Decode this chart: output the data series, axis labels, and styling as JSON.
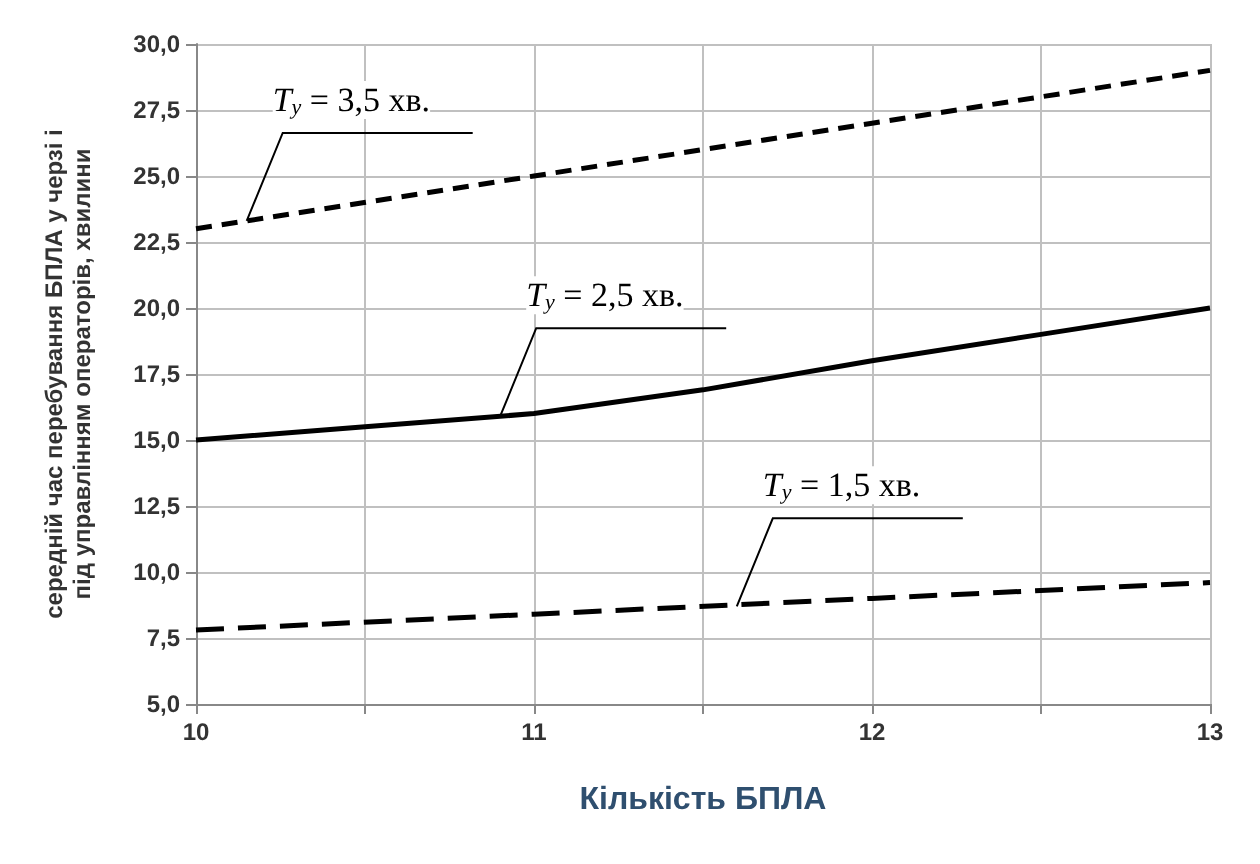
{
  "chart_data": {
    "type": "line",
    "xlabel": "Кількість БПЛА",
    "ylabel": "середній час перебування БПЛА у черзі і\nпід управлінням операторів, хвилини",
    "xlim": [
      10,
      13
    ],
    "xticks": [
      10,
      {
        "value": 10.5,
        "label": null
      },
      11,
      {
        "value": 11.5,
        "label": null
      },
      12,
      {
        "value": 12.5,
        "label": null
      },
      13
    ],
    "ylim": [
      5,
      30
    ],
    "yticks": [
      {
        "value": 5,
        "label": "5,0"
      },
      {
        "value": 7.5,
        "label": "7,5"
      },
      {
        "value": 10,
        "label": "10,0"
      },
      {
        "value": 12.5,
        "label": "12,5"
      },
      {
        "value": 15,
        "label": "15,0"
      },
      {
        "value": 17.5,
        "label": "17,5"
      },
      {
        "value": 20,
        "label": "20,0"
      },
      {
        "value": 22.5,
        "label": "22,5"
      },
      {
        "value": 25,
        "label": "25,0"
      },
      {
        "value": 27.5,
        "label": "27,5"
      },
      {
        "value": 30,
        "label": "30,0"
      }
    ],
    "grid": true,
    "marker": "none",
    "series": [
      {
        "color": "#000000",
        "line_style": "dashed",
        "x": [
          10,
          11,
          12,
          13
        ],
        "values": [
          23,
          25,
          27,
          29
        ]
      },
      {
        "color": "#000000",
        "line_style": "solid",
        "x": [
          10,
          10.5,
          11,
          11.5,
          12,
          12.5,
          13
        ],
        "values": [
          15,
          15.5,
          16,
          16.9,
          18,
          19,
          20
        ]
      },
      {
        "color": "#000000",
        "line_style": "dashed",
        "x": [
          10,
          11,
          12,
          13
        ],
        "values": [
          7.8,
          8.4,
          9,
          9.6
        ]
      }
    ],
    "annotations": [
      {
        "text": "T$_{y}$ = 3,5 хв.",
        "x": 10.15,
        "y": 23.3
      },
      {
        "text": "T$_{y}$ = 2,5 хв.",
        "x": 10.9,
        "y": 15.9
      },
      {
        "text": "T$_{y}$ = 1,5 хв.",
        "x": 11.6,
        "y": 8.7
      }
    ]
  }
}
